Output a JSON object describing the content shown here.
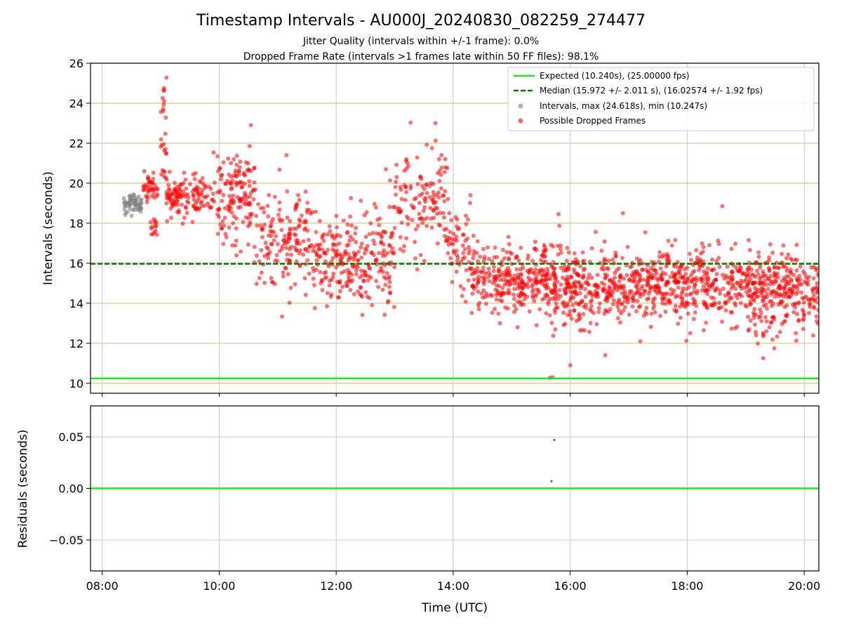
{
  "chart_data": {
    "type": "scatter",
    "title": "Timestamp Intervals - AU000J_20240830_082259_274477",
    "subtitles": [
      "Jitter Quality (intervals within +/-1 frame): 0.0%",
      "Dropped Frame Rate (intervals >1 frames late within 50 FF files): 98.1%"
    ],
    "xlabel": "Time (UTC)",
    "x_tick_labels": [
      "08:00",
      "10:00",
      "12:00",
      "14:00",
      "16:00",
      "18:00",
      "20:00"
    ],
    "x_ticks_hours": [
      8,
      10,
      12,
      14,
      16,
      18,
      20
    ],
    "xlim_hours": [
      7.8,
      20.25
    ],
    "main": {
      "ylabel": "Intervals (seconds)",
      "ylim": [
        9.5,
        26
      ],
      "y_ticks": [
        10,
        12,
        14,
        16,
        18,
        20,
        22,
        24,
        26
      ],
      "y_tick_labels": [
        "10",
        "12",
        "14",
        "16",
        "18",
        "20",
        "22",
        "24",
        "26"
      ],
      "expected_y": 10.24,
      "median_y": 15.972,
      "legend": {
        "position": "top-right",
        "entries": [
          "Expected (10.240s), (25.00000 fps)",
          "Median (15.972 +/- 2.011 s), (16.02574 +/- 1.92 fps)",
          "Intervals, max (24.618s), min (10.247s)",
          "Possible Dropped Frames"
        ]
      },
      "gray_points": {
        "x_range_hours": [
          8.37,
          8.68
        ],
        "y_range": [
          18.3,
          19.7
        ],
        "count": 60
      },
      "red_point_segments": [
        {
          "x": [
            8.7,
            8.95
          ],
          "y_center": 19.8,
          "y_spread": 0.5,
          "count": 40
        },
        {
          "x": [
            8.82,
            8.95
          ],
          "y_center": 18.0,
          "y_spread": 0.5,
          "count": 15
        },
        {
          "x": [
            9.0,
            9.1
          ],
          "y_center": 22.5,
          "y_spread": 1.8,
          "count": 25
        },
        {
          "x": [
            9.1,
            9.9
          ],
          "y_center": 19.3,
          "y_spread": 0.6,
          "count": 130
        },
        {
          "x": [
            9.9,
            10.6
          ],
          "y_center": 19.0,
          "y_spread": 1.6,
          "count": 110
        },
        {
          "x": [
            10.2,
            10.6
          ],
          "y_center": 20.3,
          "y_spread": 0.7,
          "count": 30
        },
        {
          "x": [
            10.6,
            11.6
          ],
          "y_center": 17.2,
          "y_spread": 1.6,
          "count": 160
        },
        {
          "x": [
            11.6,
            12.4
          ],
          "y_center": 16.3,
          "y_spread": 1.6,
          "count": 150
        },
        {
          "x": [
            12.4,
            13.0
          ],
          "y_center": 16.2,
          "y_spread": 1.8,
          "count": 110
        },
        {
          "x": [
            13.0,
            13.9
          ],
          "y_center": 19.0,
          "y_spread": 1.8,
          "count": 130
        },
        {
          "x": [
            13.9,
            14.3
          ],
          "y_center": 16.8,
          "y_spread": 1.5,
          "count": 60
        },
        {
          "x": [
            14.3,
            15.6
          ],
          "y_center": 15.2,
          "y_spread": 1.1,
          "count": 280
        },
        {
          "x": [
            15.6,
            16.4
          ],
          "y_center": 14.7,
          "y_spread": 1.3,
          "count": 200
        },
        {
          "x": [
            16.4,
            18.3
          ],
          "y_center": 15.0,
          "y_spread": 1.1,
          "count": 420
        },
        {
          "x": [
            18.3,
            19.8
          ],
          "y_center": 15.0,
          "y_spread": 1.1,
          "count": 330
        },
        {
          "x": [
            19.0,
            19.7
          ],
          "y_center": 12.8,
          "y_spread": 0.7,
          "count": 25
        },
        {
          "x": [
            19.8,
            20.25
          ],
          "y_center": 14.6,
          "y_spread": 1.3,
          "count": 90
        }
      ],
      "red_points_explicit": [
        {
          "x": 9.05,
          "y": 24.618
        },
        {
          "x": 9.06,
          "y": 24.1
        },
        {
          "x": 11.15,
          "y": 21.4
        },
        {
          "x": 15.65,
          "y": 10.27
        },
        {
          "x": 15.7,
          "y": 10.3
        },
        {
          "x": 16.6,
          "y": 11.4
        },
        {
          "x": 16.0,
          "y": 10.9
        },
        {
          "x": 17.2,
          "y": 12.1
        },
        {
          "x": 18.05,
          "y": 12.5
        },
        {
          "x": 19.3,
          "y": 11.25
        },
        {
          "x": 15.8,
          "y": 18.45
        },
        {
          "x": 16.9,
          "y": 18.5
        },
        {
          "x": 18.6,
          "y": 18.85
        },
        {
          "x": 13.2,
          "y": 21.2
        },
        {
          "x": 13.8,
          "y": 21.4
        },
        {
          "x": 12.85,
          "y": 20.7
        },
        {
          "x": 10.2,
          "y": 21.0
        },
        {
          "x": 15.1,
          "y": 12.8
        },
        {
          "x": 14.8,
          "y": 13.0
        }
      ]
    },
    "residuals": {
      "ylabel": "Residuals (seconds)",
      "ylim": [
        -0.08,
        0.08
      ],
      "y_ticks": [
        -0.05,
        0.0,
        0.05
      ],
      "y_tick_labels": [
        "−0.05",
        "0.00",
        "0.05"
      ],
      "expected_y": 0.0,
      "points": [
        {
          "x": 15.68,
          "y": 0.007
        },
        {
          "x": 15.73,
          "y": 0.047
        }
      ]
    },
    "colors": {
      "expected": "#1ee81e",
      "median": "#007a00",
      "gray": "#808080",
      "red": "#ff0000",
      "hgrid": "#d4c48a",
      "vgrid": "#c8c8c8"
    }
  }
}
